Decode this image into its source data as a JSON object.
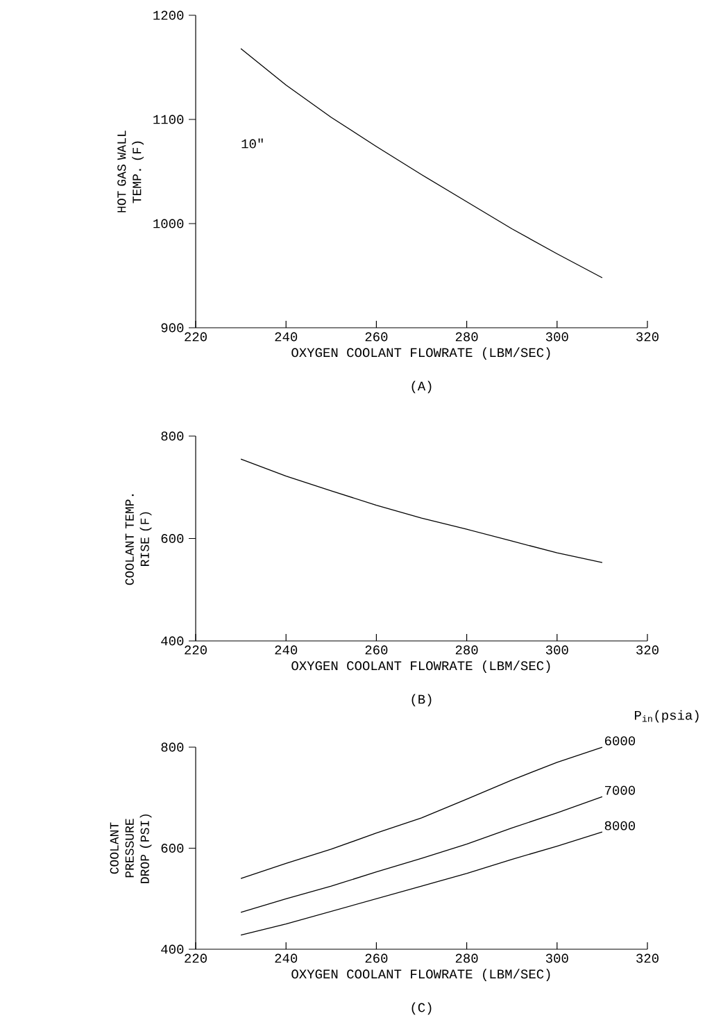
{
  "chart_data": [
    {
      "type": "line",
      "title": "(A)",
      "xlabel": "OXYGEN COOLANT FLOWRATE (LBM/SEC)",
      "ylabel": "HOT GAS WALL TEMP. (F)",
      "annotations": [
        "10\""
      ],
      "x": [
        230,
        240,
        250,
        260,
        270,
        280,
        290,
        300,
        310
      ],
      "series": [
        {
          "color": "#000000",
          "values": [
            1168,
            1133,
            1102,
            1074,
            1047,
            1021,
            995,
            971,
            948
          ]
        }
      ],
      "xlim": [
        220,
        320
      ],
      "xticks": [
        220,
        240,
        260,
        280,
        300,
        320
      ],
      "ylim": [
        900,
        1200
      ],
      "yticks": [
        900,
        1000,
        1100,
        1200
      ]
    },
    {
      "type": "line",
      "title": "(B)",
      "xlabel": "OXYGEN COOLANT FLOWRATE (LBM/SEC)",
      "ylabel": "COOLANT TEMP. RISE (F)",
      "x": [
        230,
        240,
        250,
        260,
        270,
        280,
        290,
        300,
        310
      ],
      "series": [
        {
          "color": "#000000",
          "values": [
            755,
            722,
            693,
            665,
            640,
            618,
            595,
            572,
            553
          ]
        }
      ],
      "xlim": [
        220,
        320
      ],
      "xticks": [
        220,
        240,
        260,
        280,
        300,
        320
      ],
      "ylim": [
        400,
        800
      ],
      "yticks": [
        400,
        600,
        800
      ]
    },
    {
      "type": "line",
      "title": "(C)",
      "xlabel": "OXYGEN COOLANT FLOWRATE (LBM/SEC)",
      "ylabel": "COOLANT PRESSURE DROP (PSI)",
      "legend_title": "P$_{in}$(psia)",
      "x": [
        230,
        240,
        250,
        260,
        270,
        280,
        290,
        300,
        310
      ],
      "series": [
        {
          "name": "6000",
          "color": "#000000",
          "values": [
            540,
            570,
            598,
            630,
            660,
            697,
            735,
            770,
            800
          ]
        },
        {
          "name": "7000",
          "color": "#000000",
          "values": [
            473,
            500,
            525,
            553,
            580,
            608,
            640,
            670,
            702
          ]
        },
        {
          "name": "8000",
          "color": "#000000",
          "values": [
            428,
            450,
            475,
            500,
            525,
            550,
            578,
            604,
            632
          ]
        }
      ],
      "xlim": [
        220,
        320
      ],
      "xticks": [
        220,
        240,
        260,
        280,
        300,
        320
      ],
      "ylim": [
        400,
        800
      ],
      "yticks": [
        400,
        600,
        800
      ]
    }
  ]
}
